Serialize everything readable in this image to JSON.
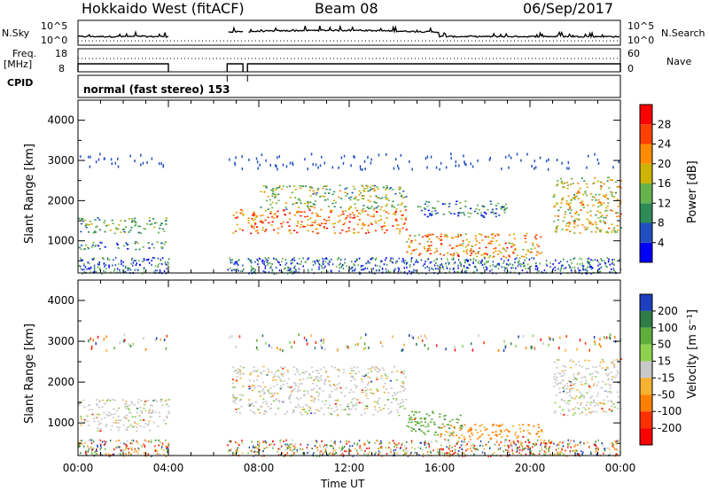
{
  "header": {
    "station": "Hokkaido West (fitACF)",
    "beam": "Beam 08",
    "date": "06/Sep/2017"
  },
  "status_panels": {
    "nsky_label": "N.Sky",
    "nsky_scale_top": "10^5",
    "nsky_scale_bottom": "10^0",
    "nsearch_label": "N.Search",
    "nsearch_scale_top": "10^5",
    "nsearch_scale_bottom": "10^0",
    "freq_label": "Freq.",
    "freq_unit": "[MHz]",
    "freq_ticks": [
      "18",
      "8"
    ],
    "nave_label": "Nave",
    "nave_ticks": [
      "60",
      "0"
    ],
    "cpid_label": "CPID",
    "cpid_text": "normal (fast stereo) 153"
  },
  "chart_data": [
    {
      "type": "heatmap",
      "name": "power",
      "ylabel": "Slant Range [km]",
      "yticks": [
        "1000",
        "2000",
        "3000",
        "4000"
      ],
      "ylim": [
        200,
        4500
      ],
      "xlim": [
        "00:00",
        "24:00"
      ],
      "colorbar_label": "Power [dB]",
      "colorbar_ticks": [
        "4",
        "8",
        "12",
        "16",
        "20",
        "24",
        "28"
      ],
      "colorbar_range": [
        0,
        32
      ],
      "colors": [
        "#0000ff",
        "#2050c0",
        "#2e8b57",
        "#66b34d",
        "#ccb400",
        "#ff8c00",
        "#ff4000",
        "#ff0000"
      ],
      "echo_regions": [
        {
          "t0": 0.0,
          "t1": 4.0,
          "r0": 1200,
          "r1": 1600,
          "level": 12
        },
        {
          "t0": 0.0,
          "t1": 4.0,
          "r0": 800,
          "r1": 1000,
          "level": 10
        },
        {
          "t0": 6.8,
          "t1": 14.5,
          "r0": 1200,
          "r1": 1800,
          "level": 24
        },
        {
          "t0": 8.0,
          "t1": 14.5,
          "r0": 1800,
          "r1": 2400,
          "level": 14
        },
        {
          "t0": 14.5,
          "t1": 20.5,
          "r0": 600,
          "r1": 1200,
          "level": 22
        },
        {
          "t0": 15.0,
          "t1": 19.0,
          "r0": 1600,
          "r1": 2000,
          "level": 8
        },
        {
          "t0": 21.0,
          "t1": 24.0,
          "r0": 1200,
          "r1": 2600,
          "level": 18
        }
      ]
    },
    {
      "type": "heatmap",
      "name": "velocity",
      "ylabel": "Slant Range [km]",
      "yticks": [
        "1000",
        "2000",
        "3000",
        "4000"
      ],
      "ylim": [
        200,
        4500
      ],
      "xlim": [
        "00:00",
        "24:00"
      ],
      "xlabel": "Time UT",
      "xticks": [
        "00:00",
        "04:00",
        "08:00",
        "12:00",
        "16:00",
        "20:00",
        "00:00"
      ],
      "colorbar_label": "Velocity [m s⁻¹]",
      "colorbar_ticks": [
        "200",
        "100",
        "50",
        "15",
        "-15",
        "-50",
        "-100",
        "-200"
      ],
      "colors": [
        "#1c3fbf",
        "#2f7d46",
        "#5fae3b",
        "#8fd14f",
        "#c8c8c8",
        "#f5b130",
        "#ff8000",
        "#ff3000",
        "#ff0000"
      ],
      "echo_regions": [
        {
          "t0": 0.0,
          "t1": 4.0,
          "r0": 800,
          "r1": 1600,
          "level": 0
        },
        {
          "t0": 6.8,
          "t1": 14.5,
          "r0": 1200,
          "r1": 2400,
          "level": 0
        },
        {
          "t0": 14.5,
          "t1": 17.0,
          "r0": 700,
          "r1": 1300,
          "level": 60
        },
        {
          "t0": 16.0,
          "t1": 20.5,
          "r0": 600,
          "r1": 1000,
          "level": -40
        },
        {
          "t0": 21.0,
          "t1": 24.0,
          "r0": 1200,
          "r1": 2600,
          "level": 0
        }
      ]
    }
  ]
}
